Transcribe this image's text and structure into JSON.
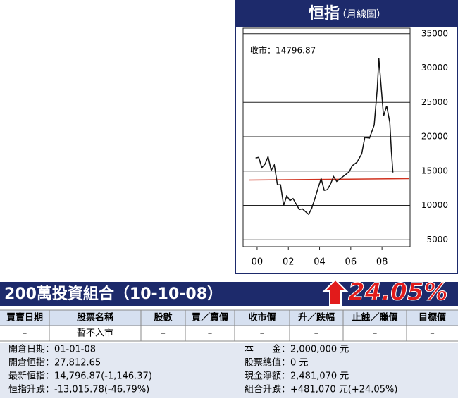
{
  "chart_data": {
    "type": "line",
    "title": "恒指",
    "subtitle": "（月線圖）",
    "annotation": "收市：14796.87",
    "x": [
      1999.9,
      2000.1,
      2000.3,
      2000.5,
      2000.7,
      2000.9,
      2001.1,
      2001.3,
      2001.5,
      2001.7,
      2001.9,
      2002.1,
      2002.3,
      2002.5,
      2002.7,
      2002.9,
      2003.1,
      2003.3,
      2003.5,
      2003.7,
      2003.9,
      2004.1,
      2004.3,
      2004.5,
      2004.7,
      2004.9,
      2005.1,
      2005.5,
      2005.9,
      2006.1,
      2006.4,
      2006.7,
      2006.9,
      2007.2,
      2007.5,
      2007.7,
      2007.8,
      2007.9,
      2008.1,
      2008.3,
      2008.5,
      2008.6,
      2008.7
    ],
    "series": [
      {
        "color": "#111111",
        "values": [
          16900,
          17000,
          15500,
          16000,
          17100,
          15100,
          15900,
          13000,
          13000,
          10000,
          11400,
          10700,
          11000,
          10200,
          9400,
          9500,
          9100,
          8700,
          9600,
          11000,
          12500,
          13900,
          12200,
          12300,
          13100,
          14200,
          13500,
          14200,
          14900,
          15800,
          16300,
          17500,
          19900,
          19800,
          21700,
          27100,
          31400,
          28600,
          23000,
          24500,
          22100,
          18000,
          14797
        ]
      }
    ],
    "reference_line": {
      "color": "#d0321f",
      "values": [
        13700,
        13900
      ]
    },
    "xlim": [
      1999.1,
      2009.8
    ],
    "xticks": [
      {
        "value": 2000,
        "label": "00"
      },
      {
        "value": 2002,
        "label": "02"
      },
      {
        "value": 2004,
        "label": "04"
      },
      {
        "value": 2006,
        "label": "06"
      },
      {
        "value": 2008,
        "label": "08"
      }
    ],
    "ylim": [
      4000,
      35800
    ],
    "yticks": [
      5000,
      10000,
      15000,
      20000,
      25000,
      30000,
      35000
    ],
    "grid": true
  },
  "portfolio": {
    "title": "200萬投資組合（10-10-08）",
    "change": "24.05%",
    "headers": [
      "買賣日期",
      "股票名稱",
      "股數",
      "買／賣價",
      "收市價",
      "升／跌幅",
      "止蝕／賺價",
      "目標價"
    ],
    "row": [
      "–",
      "暫不入市",
      "–",
      "–",
      "–",
      "–",
      "–",
      "–"
    ],
    "left": [
      "開倉日期：01-01-08",
      "開倉恒指：27,812.65",
      "最新恒指：14,796.87(-1,146.37)",
      "恒指升跌：-13,015.78(-46.79%)"
    ],
    "right": [
      "本　　金：2,000,000 元",
      "股票總值：0 元",
      "現金淨額：2,481,070 元",
      "組合升跌：+481,070 元(+24.05%)"
    ]
  }
}
